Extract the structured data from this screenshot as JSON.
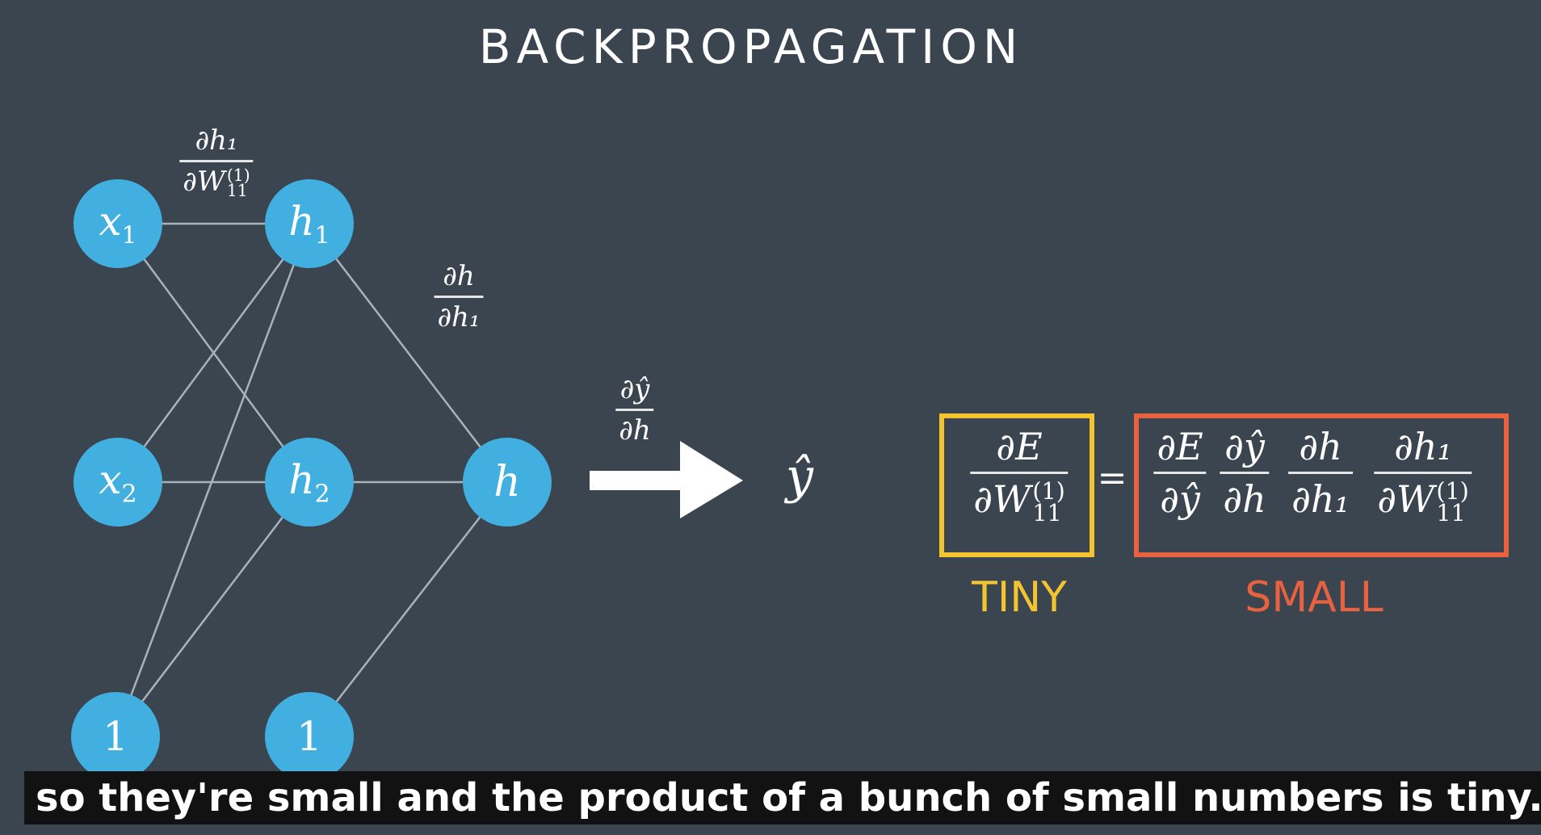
{
  "title": "BACKPROPAGATION",
  "colors": {
    "background": "#3b4550",
    "node": "#41b0e0",
    "edge": "#a9b2ba",
    "tiny": "#f2c530",
    "small": "#e8623f"
  },
  "nodes": {
    "x1": {
      "base": "x",
      "sub": "1"
    },
    "x2": {
      "base": "x",
      "sub": "2"
    },
    "bias_input": {
      "text": "1"
    },
    "h1": {
      "base": "h",
      "sub": "1"
    },
    "h2": {
      "base": "h",
      "sub": "2"
    },
    "bias_hidden": {
      "text": "1"
    },
    "h": {
      "base": "h"
    },
    "y_hat": "ŷ"
  },
  "derivatives": {
    "dh1_dW11": {
      "num": "∂h₁",
      "den": "∂W",
      "sup": "(1)",
      "sub": "11"
    },
    "dh_dh1": {
      "num": "∂h",
      "den": "∂h₁"
    },
    "dyhat_dh": {
      "num": "∂ŷ",
      "den": "∂h"
    }
  },
  "equation": {
    "lhs": {
      "num": "∂E",
      "den": "∂W",
      "sup": "(1)",
      "sub": "11"
    },
    "equals": "=",
    "rhs": [
      {
        "num": "∂E",
        "den": "∂ŷ"
      },
      {
        "num": "∂ŷ",
        "den": "∂h"
      },
      {
        "num": "∂h",
        "den": "∂h₁"
      },
      {
        "num": "∂h₁",
        "den": "∂W",
        "sup": "(1)",
        "sub": "11"
      }
    ],
    "lhs_label": "TINY",
    "rhs_label": "SMALL"
  },
  "caption": "so they're small and the product of a bunch of small numbers is tiny."
}
